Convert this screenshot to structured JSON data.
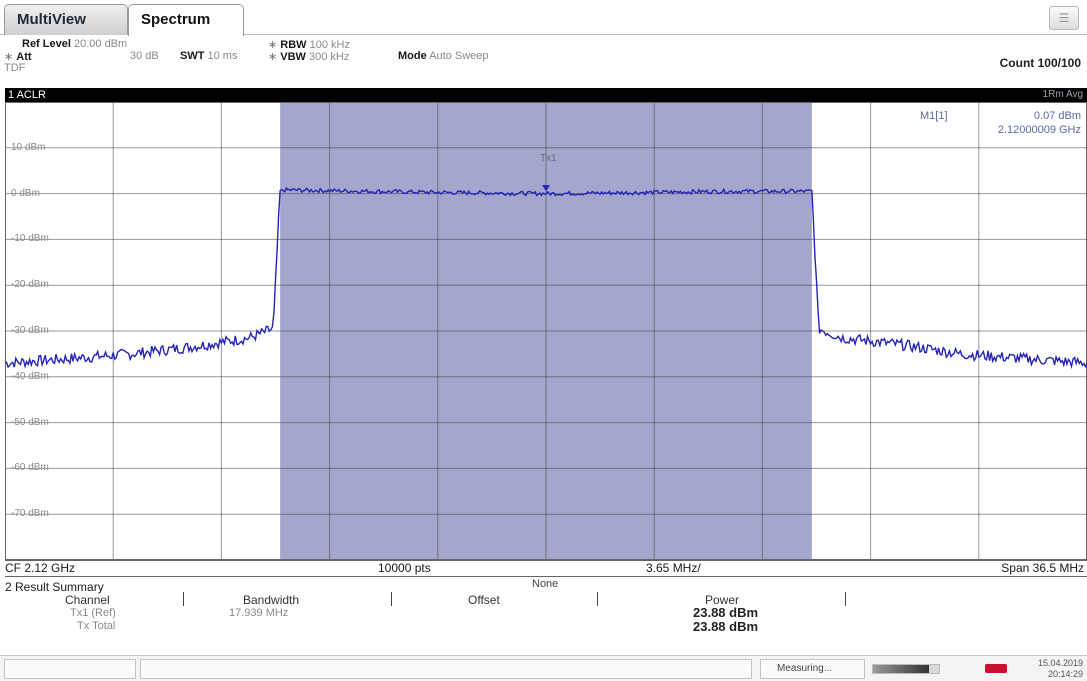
{
  "tabs": [
    {
      "label": "MultiView",
      "active": false
    },
    {
      "label": "Spectrum",
      "active": true
    }
  ],
  "menu_icon": "hamburger-icon",
  "settings": {
    "ref_level_label": "Ref Level",
    "ref_level_value": "20.00 dBm",
    "att_label": "Att",
    "att_value": "30 dB",
    "swt_label": "SWT",
    "swt_value": "10 ms",
    "rbw_label": "RBW",
    "rbw_value": "100 kHz",
    "vbw_label": "VBW",
    "vbw_value": "300 kHz",
    "mode_label": "Mode",
    "mode_value": "Auto Sweep",
    "tdf_label": "TDF",
    "count_label": "Count 100/100"
  },
  "window": {
    "title": "1 ACLR",
    "trace_tag": "1Rm Avg"
  },
  "marker": {
    "label": "M1[1]",
    "level": "0.07 dBm",
    "freq": "2.12000009 GHz"
  },
  "channel_label": "Tx1",
  "y_axis_labels": [
    "10 dBm",
    "0 dBm",
    "-10 dBm",
    "-20 dBm",
    "-30 dBm",
    "-40 dBm",
    "-50 dBm",
    "-60 dBm",
    "-70 dBm"
  ],
  "chart_data": {
    "type": "line",
    "ylim": [
      -80,
      20
    ],
    "xlim_mhz": [
      -18.25,
      18.25
    ],
    "channel_band_mhz": [
      -8.97,
      8.97
    ],
    "series": [
      {
        "x_mhz": [
          -18.25,
          -16,
          -14,
          -12,
          -10,
          -9.2,
          -8.97,
          -8.8,
          -6,
          -3,
          0,
          3,
          6,
          8.8,
          8.97,
          9.2,
          10,
          12,
          14,
          16,
          18.25
        ],
        "y_dbm": [
          -37,
          -36,
          -35,
          -33.5,
          -31.5,
          -29.5,
          0.5,
          0.8,
          0.5,
          0.2,
          0.0,
          0.2,
          0.5,
          0.5,
          0.5,
          -29.5,
          -31.5,
          -33,
          -35,
          -36,
          -37
        ]
      }
    ]
  },
  "footer": {
    "cf": "CF 2.12 GHz",
    "points": "10000 pts",
    "div": "3.65 MHz/",
    "span": "Span 36.5 MHz"
  },
  "results": {
    "title": "2 Result Summary",
    "none_label": "None",
    "headers": [
      "Channel",
      "Bandwidth",
      "Offset",
      "Power"
    ],
    "rows": [
      {
        "channel": "Tx1 (Ref)",
        "bandwidth": "17.939 MHz",
        "power": "23.88 dBm"
      },
      {
        "channel": "Tx Total",
        "bandwidth": "",
        "power": "23.88 dBm"
      }
    ]
  },
  "status": {
    "measuring": "Measuring...",
    "progress": 0.85,
    "date": "15.04.2019",
    "time": "20:14:29"
  }
}
